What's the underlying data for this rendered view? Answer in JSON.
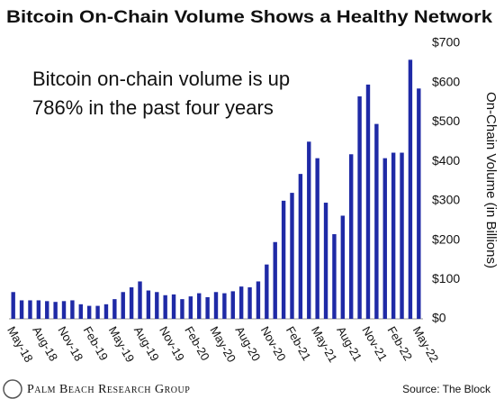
{
  "chart_data": {
    "type": "bar",
    "title": "Bitcoin On-Chain Volume Shows a Healthy Network",
    "annotation": [
      "Bitcoin on-chain volume is up",
      "786% in the past four years"
    ],
    "y_axis_label": "On-Chain Volume (in Billions)",
    "source": "Source: The Block",
    "brand": "Palm Beach Research Group",
    "color": "#1f2aa6",
    "categories": [
      "May-18",
      null,
      null,
      "Aug-18",
      null,
      null,
      "Nov-18",
      null,
      null,
      "Feb-19",
      null,
      null,
      "May-19",
      null,
      null,
      "Aug-19",
      null,
      null,
      "Nov-19",
      null,
      null,
      "Feb-20",
      null,
      null,
      "May-20",
      null,
      null,
      "Aug-20",
      null,
      null,
      "Nov-20",
      null,
      null,
      "Feb-21",
      null,
      null,
      "May-21",
      null,
      null,
      "Aug-21",
      null,
      null,
      "Nov-21",
      null,
      null,
      "Feb-22",
      null,
      null,
      "May-22"
    ],
    "values": [
      68,
      47,
      47,
      47,
      45,
      43,
      45,
      47,
      37,
      33,
      33,
      37,
      50,
      68,
      80,
      95,
      72,
      68,
      60,
      62,
      50,
      57,
      65,
      55,
      68,
      65,
      70,
      82,
      80,
      95,
      138,
      195,
      300,
      320,
      368,
      450,
      408,
      295,
      215,
      262,
      418,
      565,
      595,
      495,
      408,
      422,
      422,
      658,
      585
    ],
    "ylim": [
      0,
      700
    ],
    "yticks": [
      {
        "value": 0,
        "label": "$0"
      },
      {
        "value": 100,
        "label": "$100"
      },
      {
        "value": 200,
        "label": "$200"
      },
      {
        "value": 300,
        "label": "$300"
      },
      {
        "value": 400,
        "label": "$400"
      },
      {
        "value": 500,
        "label": "$500"
      },
      {
        "value": 600,
        "label": "$600"
      },
      {
        "value": 700,
        "label": "$700"
      }
    ]
  }
}
